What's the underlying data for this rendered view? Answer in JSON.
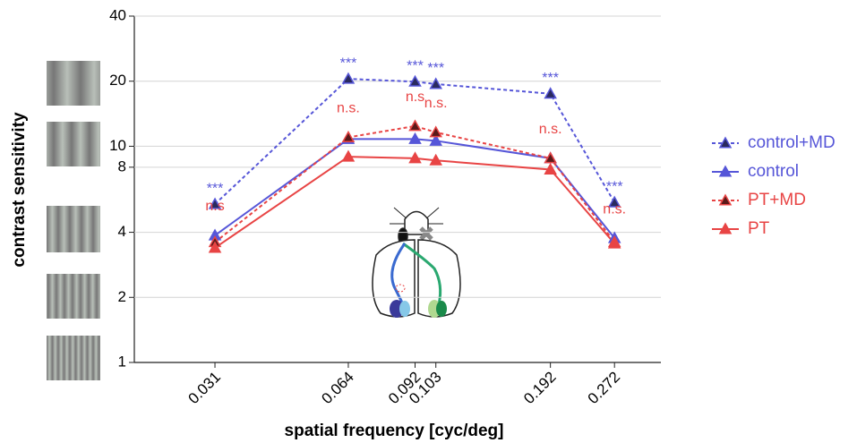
{
  "chart_data": {
    "type": "line",
    "x_label": "spatial frequency [cyc/deg]",
    "y_label": "contrast sensitivity",
    "x": [
      0.031,
      0.064,
      0.092,
      0.103,
      0.192,
      0.272
    ],
    "xlim": [
      0.02,
      0.35
    ],
    "xticks": [
      0.031,
      0.064,
      0.092,
      0.103,
      0.192,
      0.272
    ],
    "x_log": true,
    "ylim": [
      1,
      40
    ],
    "yticks": [
      1,
      2,
      4,
      8,
      10,
      20,
      40
    ],
    "y_log": true,
    "grid": true,
    "legend": "right",
    "series": [
      {
        "name": "control+MD",
        "color": "#5656d8",
        "marker_fill": "#2a2a5e",
        "dashed": true,
        "values": [
          5.4,
          20.5,
          19.9,
          19.4,
          17.5,
          5.5
        ]
      },
      {
        "name": "control",
        "color": "#5656d8",
        "marker_fill": "#5656d8",
        "dashed": false,
        "values": [
          3.87,
          10.8,
          10.8,
          10.6,
          8.8,
          3.76
        ]
      },
      {
        "name": "PT+MD",
        "color": "#e84444",
        "marker_fill": "#5a1a1a",
        "dashed": true,
        "values": [
          3.6,
          11.0,
          12.4,
          11.6,
          8.8,
          3.6
        ]
      },
      {
        "name": "PT",
        "color": "#e84444",
        "marker_fill": "#e84444",
        "dashed": false,
        "values": [
          3.39,
          8.95,
          8.8,
          8.6,
          7.8,
          3.55
        ]
      }
    ],
    "significance_md": [
      "***",
      "***",
      "***",
      "***",
      "***",
      "***"
    ],
    "significance_pt": [
      "n.s",
      "n.s.",
      "n.s",
      "n.s.",
      "n.s.",
      "n.s."
    ]
  }
}
